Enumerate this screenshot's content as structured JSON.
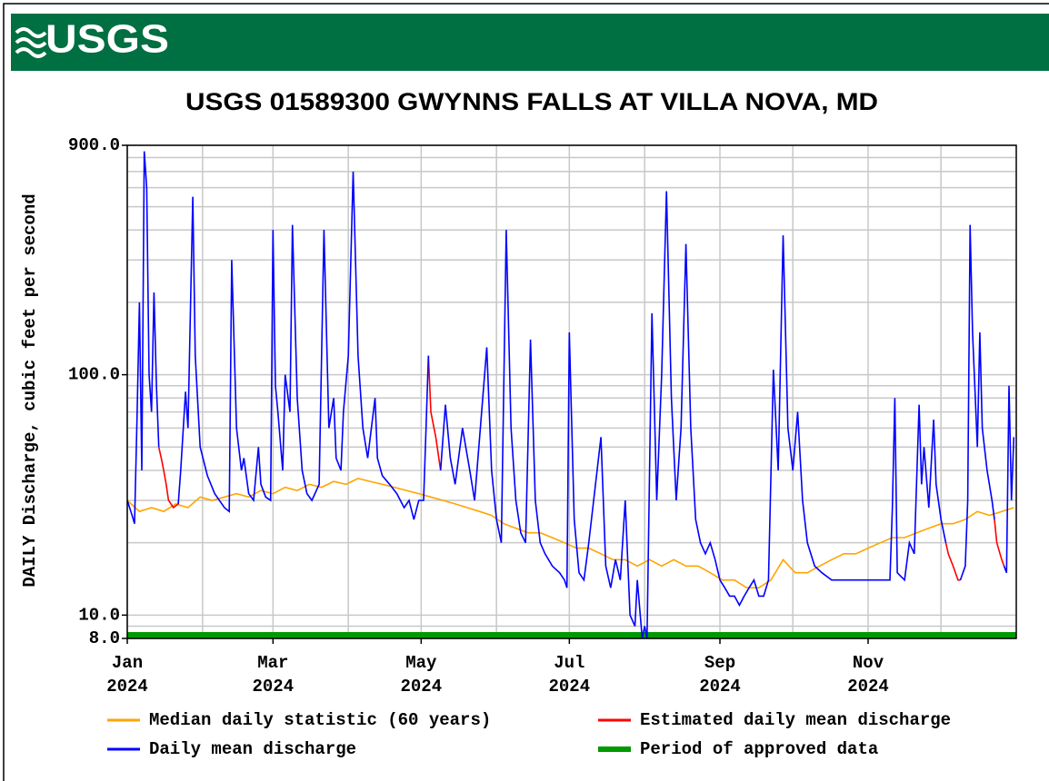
{
  "header": {
    "logo": "USGS"
  },
  "chart_data": {
    "type": "line",
    "title": "USGS 01589300 GWYNNS FALLS AT VILLA NOVA, MD",
    "y_label": "DAILY Discharge, cubic feet per second",
    "log_y": true,
    "grid": true,
    "xlim": [
      0,
      366
    ],
    "ylim": [
      8,
      900
    ],
    "yticks": [
      {
        "value": 8,
        "label": "8.0"
      },
      {
        "value": 10,
        "label": "10.0"
      },
      {
        "value": 100,
        "label": "100.0"
      },
      {
        "value": 900,
        "label": "900.0"
      }
    ],
    "y_gridlines": [
      9,
      20,
      30,
      40,
      50,
      60,
      70,
      80,
      90,
      200,
      300,
      400,
      500,
      600,
      700,
      800
    ],
    "xticks": [
      {
        "value": 0,
        "label": "Jan\n2024"
      },
      {
        "value": 60,
        "label": "Mar\n2024"
      },
      {
        "value": 121,
        "label": "May\n2024"
      },
      {
        "value": 182,
        "label": "Jul\n2024"
      },
      {
        "value": 244,
        "label": "Sep\n2024"
      },
      {
        "value": 305,
        "label": "Nov\n2024"
      }
    ],
    "x_gridlines": [
      31,
      91,
      152,
      213,
      274,
      335
    ],
    "series": [
      {
        "name": "Median daily statistic (60 years)",
        "color": "#ffa500",
        "x": [
          0,
          5,
          10,
          15,
          20,
          25,
          30,
          35,
          40,
          45,
          50,
          55,
          60,
          65,
          70,
          75,
          80,
          85,
          90,
          95,
          100,
          105,
          110,
          115,
          120,
          125,
          130,
          135,
          140,
          145,
          150,
          155,
          160,
          165,
          170,
          175,
          180,
          185,
          190,
          195,
          200,
          205,
          210,
          215,
          220,
          225,
          230,
          235,
          240,
          245,
          250,
          255,
          260,
          265,
          270,
          275,
          280,
          285,
          290,
          295,
          300,
          305,
          310,
          315,
          320,
          325,
          330,
          335,
          340,
          345,
          350,
          355,
          360,
          365
        ],
        "values": [
          30,
          27,
          28,
          27,
          29,
          28,
          31,
          30,
          31,
          32,
          31,
          33,
          32,
          34,
          33,
          35,
          34,
          36,
          35,
          37,
          36,
          35,
          34,
          33,
          32,
          31,
          30,
          29,
          28,
          27,
          26,
          24,
          23,
          22,
          22,
          21,
          20,
          19,
          19,
          18,
          17,
          17,
          16,
          17,
          16,
          17,
          16,
          16,
          15,
          14,
          14,
          13,
          13,
          14,
          17,
          15,
          15,
          16,
          17,
          18,
          18,
          19,
          20,
          21,
          21,
          22,
          23,
          24,
          24,
          25,
          27,
          26,
          27,
          28
        ]
      },
      {
        "name": "Estimated daily mean discharge",
        "color": "#ff0000",
        "x": [
          13,
          14,
          15,
          16,
          17,
          19,
          21,
          70,
          124,
          125,
          127,
          129,
          230,
          337,
          338,
          340,
          342,
          343,
          350,
          357,
          358,
          360,
          361
        ],
        "values": [
          50,
          45,
          40,
          35,
          30,
          28,
          29,
          null,
          120,
          70,
          55,
          40,
          null,
          20,
          18,
          16,
          14,
          14,
          null,
          25,
          20,
          17,
          16
        ]
      },
      {
        "name": "Daily mean discharge",
        "color": "#0000ff",
        "x": [
          0,
          2,
          3,
          4,
          5,
          6,
          7,
          8,
          9,
          10,
          11,
          12,
          13,
          16,
          21,
          22,
          24,
          25,
          27,
          28,
          30,
          33,
          36,
          40,
          42,
          43,
          45,
          47,
          48,
          50,
          52,
          54,
          55,
          57,
          59,
          60,
          61,
          62,
          64,
          65,
          67,
          68,
          70,
          72,
          74,
          76,
          79,
          81,
          83,
          85,
          86,
          88,
          89,
          91,
          93,
          95,
          97,
          99,
          102,
          103,
          105,
          108,
          111,
          114,
          116,
          118,
          120,
          122,
          123,
          124,
          126,
          129,
          131,
          133,
          135,
          138,
          141,
          143,
          148,
          150,
          152,
          154,
          156,
          158,
          160,
          162,
          164,
          166,
          168,
          170,
          172,
          175,
          178,
          180,
          181,
          182,
          184,
          186,
          188,
          190,
          195,
          197,
          199,
          201,
          203,
          205,
          207,
          209,
          210,
          212,
          213,
          214,
          216,
          218,
          220,
          222,
          224,
          226,
          228,
          230,
          232,
          234,
          236,
          238,
          240,
          242,
          244,
          246,
          248,
          250,
          252,
          254,
          256,
          258,
          260,
          262,
          264,
          266,
          268,
          270,
          272,
          274,
          276,
          278,
          280,
          283,
          286,
          290,
          295,
          300,
          305,
          310,
          314,
          315,
          316,
          317,
          320,
          322,
          324,
          326,
          327,
          328,
          330,
          332,
          333,
          335,
          337,
          340,
          343,
          345,
          346,
          347,
          348,
          350,
          351,
          352,
          354,
          356,
          357,
          359,
          361,
          362,
          363,
          364,
          365
        ],
        "values": [
          30,
          26,
          24,
          65,
          200,
          40,
          850,
          600,
          100,
          70,
          220,
          90,
          50,
          null,
          29,
          40,
          85,
          60,
          550,
          120,
          50,
          38,
          32,
          28,
          27,
          300,
          60,
          40,
          45,
          32,
          30,
          50,
          35,
          31,
          30,
          400,
          90,
          70,
          40,
          100,
          70,
          420,
          80,
          40,
          32,
          30,
          35,
          400,
          60,
          80,
          45,
          40,
          70,
          120,
          700,
          120,
          60,
          45,
          80,
          45,
          38,
          35,
          32,
          28,
          30,
          25,
          30,
          30,
          60,
          120,
          null,
          40,
          75,
          45,
          35,
          60,
          40,
          30,
          130,
          40,
          25,
          20,
          400,
          60,
          30,
          22,
          20,
          140,
          30,
          20,
          18,
          16,
          15,
          14,
          13,
          150,
          25,
          15,
          14,
          20,
          55,
          16,
          13,
          17,
          14,
          30,
          10,
          9,
          14,
          8,
          9,
          8,
          180,
          30,
          100,
          580,
          80,
          30,
          60,
          350,
          60,
          25,
          20,
          18,
          20,
          17,
          14,
          13,
          12,
          12,
          11,
          12,
          13,
          14,
          12,
          12,
          14,
          105,
          40,
          380,
          60,
          40,
          70,
          30,
          20,
          16,
          15,
          14,
          14,
          14,
          14,
          14,
          14,
          28,
          80,
          15,
          14,
          20,
          18,
          75,
          35,
          50,
          28,
          65,
          35,
          25,
          20,
          null,
          14,
          16,
          30,
          420,
          150,
          50,
          150,
          60,
          40,
          30,
          25,
          null,
          16,
          15,
          90,
          30,
          55
        ]
      }
    ],
    "approved": {
      "name": "Period of approved data",
      "color": "#009900",
      "x": [
        0,
        366
      ]
    }
  }
}
